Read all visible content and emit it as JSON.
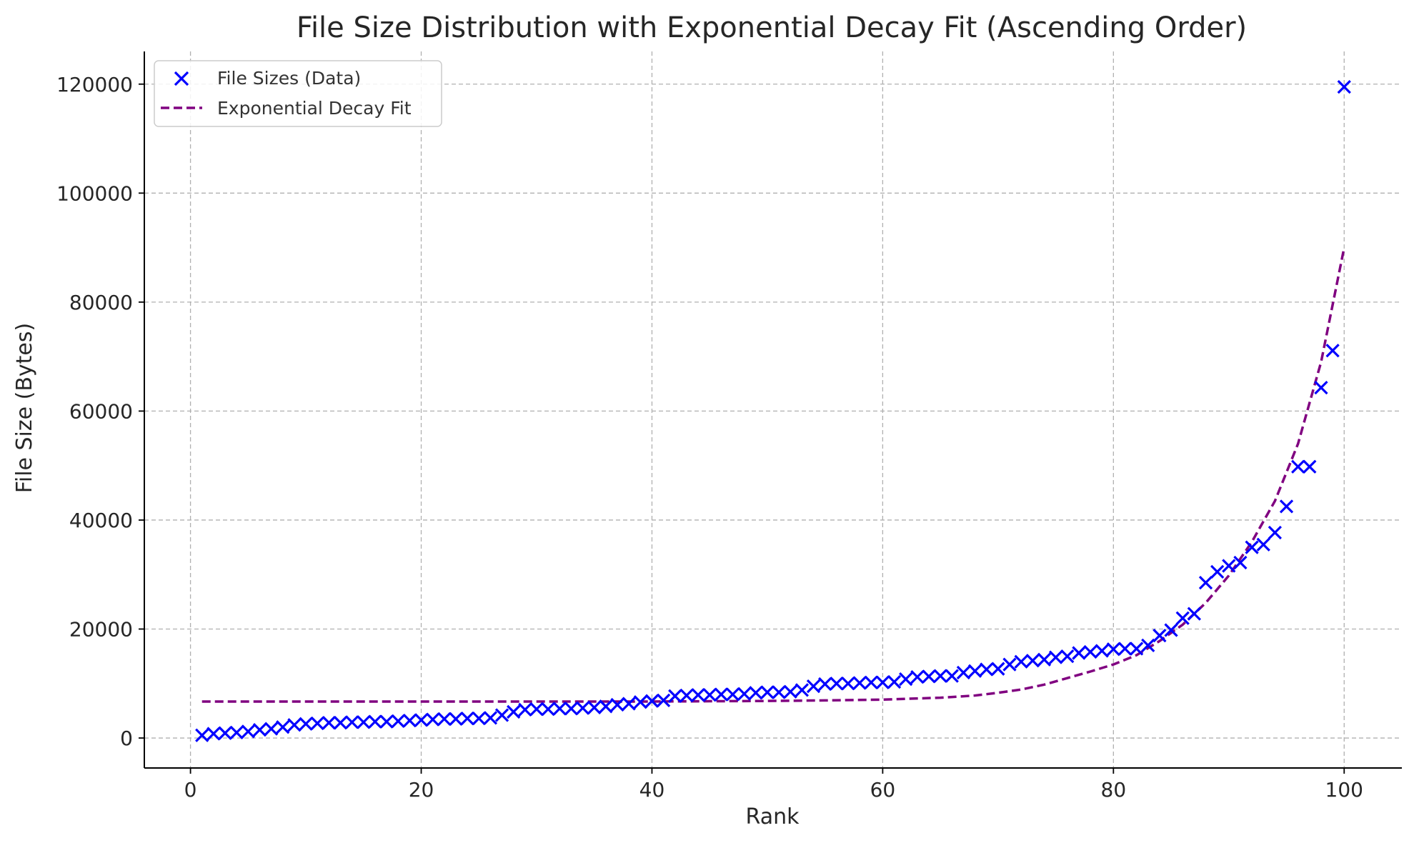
{
  "chart_data": {
    "type": "scatter",
    "title": "File Size Distribution with Exponential Decay Fit (Ascending Order)",
    "xlabel": "Rank",
    "ylabel": "File Size (Bytes)",
    "xlim": [
      -4,
      105
    ],
    "ylim": [
      -5500,
      126000
    ],
    "xticks": [
      "0",
      "20",
      "40",
      "60",
      "80",
      "100"
    ],
    "yticks": [
      "0",
      "20000",
      "40000",
      "60000",
      "80000",
      "100000",
      "120000"
    ],
    "grid": true,
    "legend_position": "upper left",
    "series": [
      {
        "name": "File Sizes (Data)",
        "kind": "scatter",
        "marker": "x",
        "color": "#0000ff",
        "x": [
          1,
          2,
          3,
          4,
          5,
          6,
          7,
          8,
          9,
          10,
          11,
          12,
          13,
          14,
          15,
          16,
          17,
          18,
          19,
          20,
          21,
          22,
          23,
          24,
          25,
          26,
          27,
          28,
          29,
          30,
          31,
          32,
          33,
          34,
          35,
          36,
          37,
          38,
          39,
          40,
          41,
          42,
          43,
          44,
          45,
          46,
          47,
          48,
          49,
          50,
          51,
          52,
          53,
          54,
          55,
          56,
          57,
          58,
          59,
          60,
          61,
          62,
          63,
          64,
          65,
          66,
          67,
          68,
          69,
          70,
          71,
          72,
          73,
          74,
          75,
          76,
          77,
          78,
          79,
          80,
          81,
          82,
          83,
          84,
          85,
          86,
          87,
          88,
          89,
          90,
          91,
          92,
          93,
          94,
          95,
          96,
          97,
          98,
          99,
          100
        ],
        "y": [
          500,
          800,
          900,
          1000,
          1200,
          1500,
          1700,
          2000,
          2400,
          2600,
          2700,
          2800,
          2800,
          2900,
          2900,
          3000,
          3000,
          3100,
          3200,
          3300,
          3400,
          3500,
          3500,
          3600,
          3600,
          3700,
          4200,
          4800,
          5200,
          5300,
          5300,
          5400,
          5400,
          5500,
          5600,
          5800,
          6100,
          6300,
          6600,
          6800,
          6900,
          7700,
          7800,
          7900,
          7900,
          8000,
          8000,
          8100,
          8300,
          8400,
          8400,
          8500,
          8800,
          9500,
          9900,
          10000,
          10000,
          10100,
          10200,
          10200,
          10300,
          10800,
          11200,
          11300,
          11400,
          11400,
          12000,
          12300,
          12600,
          12700,
          13500,
          14000,
          14200,
          14400,
          14800,
          15000,
          15600,
          15800,
          16000,
          16300,
          16400,
          16400,
          17000,
          18800,
          19800,
          22000,
          22800,
          28500,
          30500,
          31600,
          32200,
          35000,
          35500,
          37700,
          42500,
          49800,
          49800,
          64300,
          71100,
          119500
        ]
      },
      {
        "name": "Exponential Decay Fit",
        "kind": "line",
        "dash": true,
        "color": "#800080",
        "x": [
          1,
          10,
          20,
          30,
          40,
          45,
          50,
          55,
          60,
          65,
          68,
          70,
          72,
          74,
          76,
          78,
          80,
          82,
          84,
          86,
          88,
          90,
          92,
          94,
          96,
          98,
          100
        ],
        "y": [
          6700,
          6700,
          6700,
          6700,
          6700,
          6750,
          6800,
          6900,
          7050,
          7400,
          7800,
          8300,
          8900,
          9800,
          11000,
          12200,
          13500,
          15200,
          17800,
          20800,
          24800,
          29800,
          36000,
          43500,
          54000,
          69000,
          90000
        ]
      }
    ]
  }
}
